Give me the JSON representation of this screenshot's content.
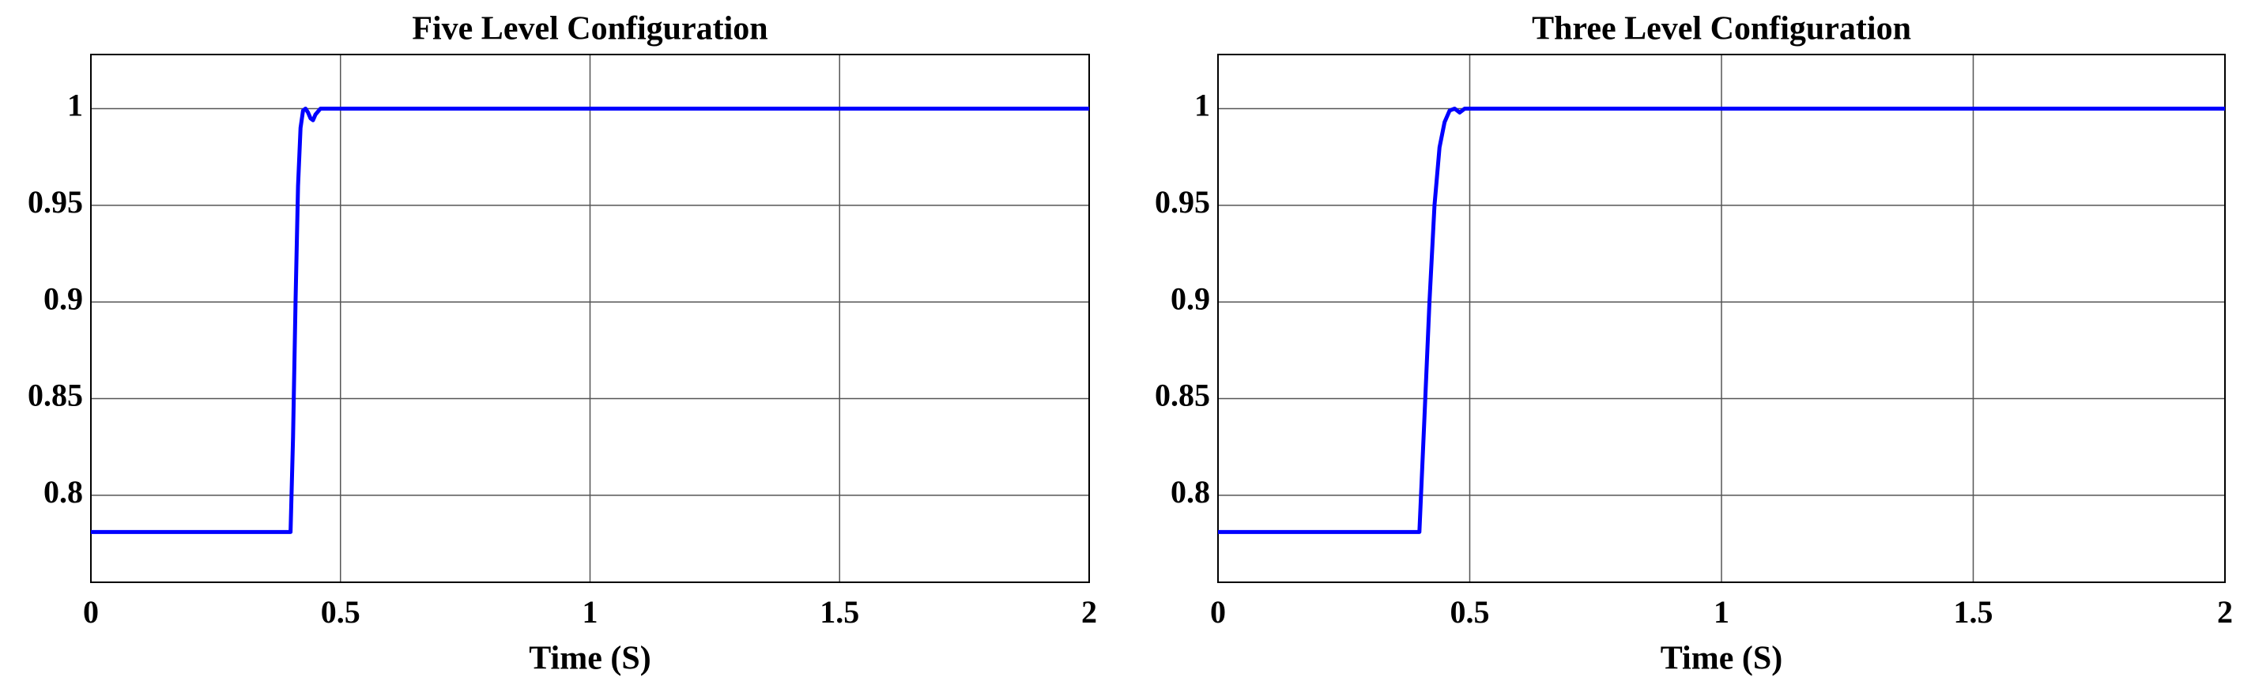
{
  "chart_data": [
    {
      "type": "line",
      "title": "Five Level Configuration",
      "xlabel": "Time (S)",
      "xlim": [
        0,
        2
      ],
      "ylim": [
        0.755,
        1.028
      ],
      "xticks": [
        0,
        0.5,
        1,
        1.5,
        2
      ],
      "yticks": [
        0.8,
        0.85,
        0.9,
        0.95,
        1
      ],
      "grid": true,
      "x": [
        0,
        0.4,
        0.405,
        0.41,
        0.415,
        0.42,
        0.425,
        0.43,
        0.435,
        0.44,
        0.445,
        0.45,
        0.46,
        0.48,
        0.5,
        2
      ],
      "series": [
        {
          "color": "#0000ff",
          "values": [
            0.781,
            0.781,
            0.83,
            0.9,
            0.96,
            0.99,
            0.999,
            1.0,
            0.998,
            0.995,
            0.994,
            0.997,
            1.0,
            1.0,
            1.0,
            1.0
          ]
        }
      ]
    },
    {
      "type": "line",
      "title": "Three Level Configuration",
      "xlabel": "Time (S)",
      "xlim": [
        0,
        2
      ],
      "ylim": [
        0.755,
        1.028
      ],
      "xticks": [
        0,
        0.5,
        1,
        1.5,
        2
      ],
      "yticks": [
        0.8,
        0.85,
        0.9,
        0.95,
        1
      ],
      "grid": true,
      "x": [
        0,
        0.4,
        0.41,
        0.42,
        0.43,
        0.44,
        0.45,
        0.46,
        0.47,
        0.48,
        0.49,
        0.5,
        2
      ],
      "series": [
        {
          "color": "#0000ff",
          "values": [
            0.781,
            0.781,
            0.84,
            0.9,
            0.95,
            0.98,
            0.993,
            0.999,
            1.0,
            0.998,
            1.0,
            1.0,
            1.0
          ]
        }
      ]
    }
  ]
}
